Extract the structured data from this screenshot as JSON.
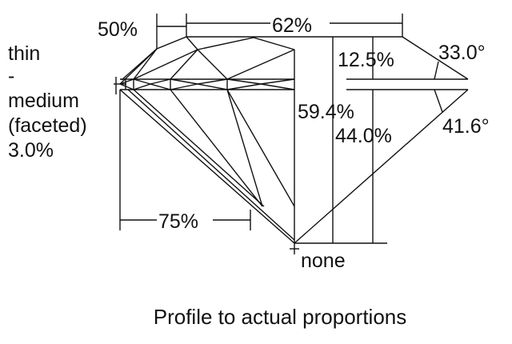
{
  "labels": {
    "crown_height_pct": "50%",
    "table_pct": "62%",
    "crown_angle": "33.0°",
    "crown_depth_pct": "12.5%",
    "total_depth_pct": "59.4%",
    "pavilion_depth_pct": "44.0%",
    "pavilion_angle": "41.6°",
    "lower_half_pct": "75%",
    "culet": "none",
    "girdle": [
      "thin",
      "-",
      "medium",
      "(faceted)",
      "3.0%"
    ]
  },
  "caption": "Profile to actual proportions"
}
